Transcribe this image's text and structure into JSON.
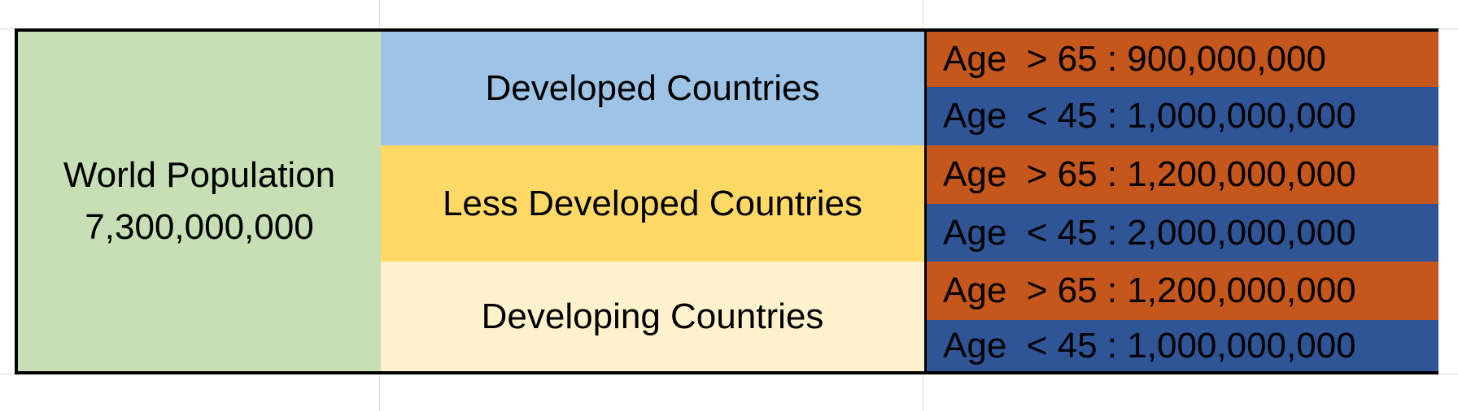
{
  "world": {
    "title": "World Population",
    "population": "7,300,000,000",
    "color": "#c6dfb4"
  },
  "regions": [
    {
      "name": "Developed Countries",
      "color": "#9dc3e6",
      "ages": [
        {
          "label": "Age  > 65 : 900,000,000",
          "color": "#c5561c"
        },
        {
          "label": "Age  < 45 : 1,000,000,000",
          "color": "#2f5597"
        }
      ]
    },
    {
      "name": "Less Developed Countries",
      "color": "#ffd966",
      "ages": [
        {
          "label": "Age  > 65 : 1,200,000,000",
          "color": "#c5561c"
        },
        {
          "label": "Age  < 45 : 2,000,000,000",
          "color": "#2f5597"
        }
      ]
    },
    {
      "name": "Developing Countries",
      "color": "#fff2cc",
      "ages": [
        {
          "label": "Age  > 65 : 1,200,000,000",
          "color": "#c5561c"
        },
        {
          "label": "Age  < 45 : 1,000,000,000",
          "color": "#2f5597"
        }
      ]
    }
  ]
}
